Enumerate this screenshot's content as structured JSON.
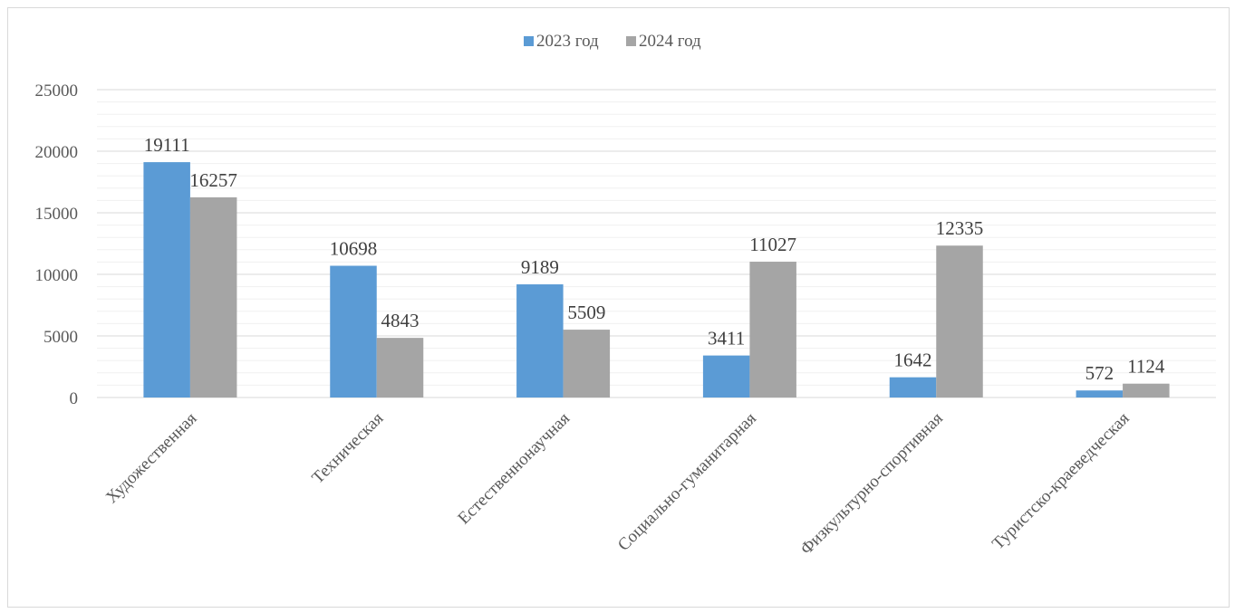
{
  "chart_data": {
    "type": "bar",
    "title": "",
    "xlabel": "",
    "ylabel": "",
    "categories": [
      "Художественная",
      "Техническая",
      "Естественнонаучная",
      "Социально-гуманитарная",
      "Физкультурно-спортивная",
      "Туристско-краеведческая"
    ],
    "series": [
      {
        "name": "2023 год",
        "color": "#5b9bd5",
        "values": [
          19111,
          10698,
          9189,
          3411,
          1642,
          572
        ]
      },
      {
        "name": "2024 год",
        "color": "#a5a5a5",
        "values": [
          16257,
          4843,
          5509,
          11027,
          12335,
          1124
        ]
      }
    ],
    "ylim": [
      0,
      25000
    ],
    "yticks": [
      0,
      5000,
      10000,
      15000,
      20000,
      25000
    ],
    "ytick_labels": [
      "0",
      "5000",
      "10000",
      "15000",
      "20000",
      "25000"
    ],
    "grid": true,
    "legend_position": "top-center",
    "data_labels": true
  }
}
